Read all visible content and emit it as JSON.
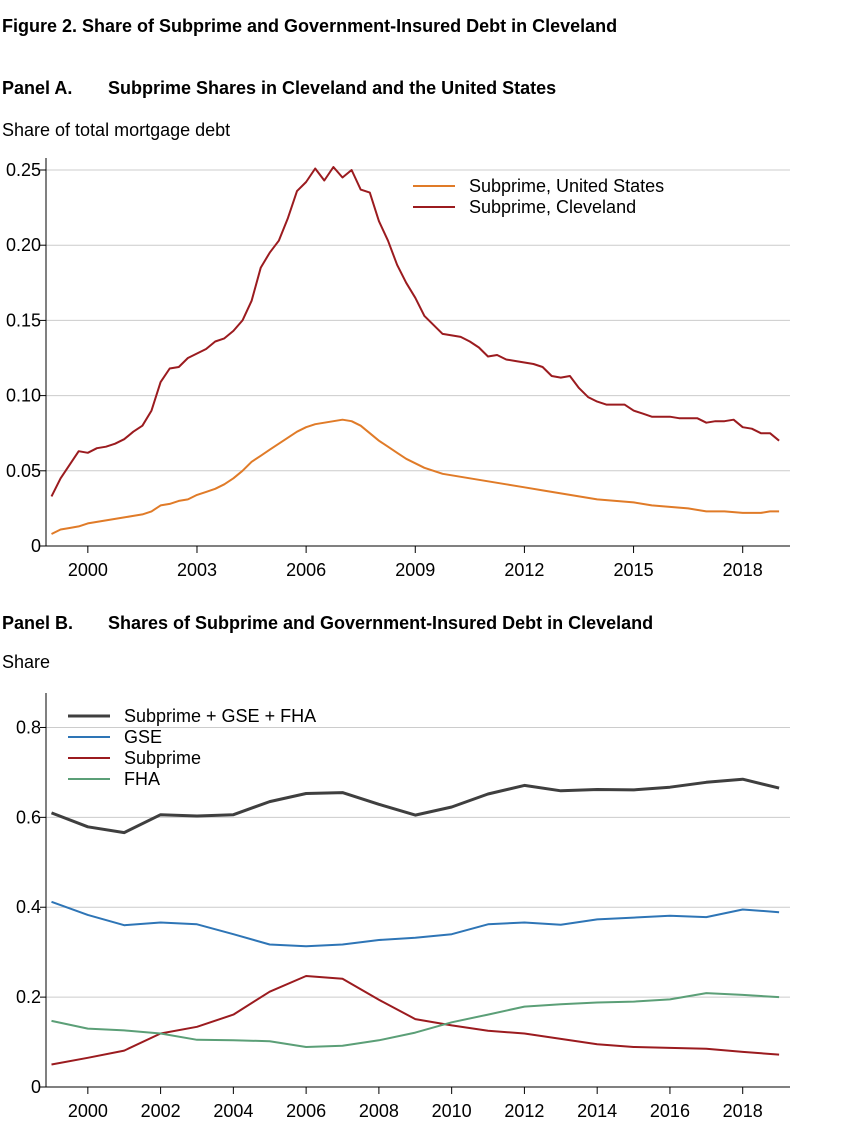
{
  "figure_title": "Figure  2.  Share of Subprime and Government-Insured Debt in Cleveland",
  "chart_data": [
    {
      "type": "line",
      "panel_label": "Panel A.",
      "title": "Subprime Shares in Cleveland and the United States",
      "ylabel": "Share of total mortgage debt",
      "xlim": [
        1998.85,
        2019.3
      ],
      "ylim": [
        0,
        0.25
      ],
      "yticks": [
        0,
        0.05,
        0.1,
        0.15,
        0.2,
        0.25
      ],
      "ytick_labels": [
        "0",
        "0.05",
        "0.10",
        "0.15",
        "0.20",
        "0.25"
      ],
      "xticks": [
        2000,
        2003,
        2006,
        2009,
        2012,
        2015,
        2018
      ],
      "xtick_labels": [
        "2000",
        "2003",
        "2006",
        "2009",
        "2012",
        "2015",
        "2018"
      ],
      "grid": true,
      "legend_position": "top-right",
      "series": [
        {
          "name": "Subprime, United States",
          "color": "#E07B28",
          "x": [
            1999.0,
            1999.25,
            1999.5,
            1999.75,
            2000.0,
            2000.25,
            2000.5,
            2000.75,
            2001.0,
            2001.25,
            2001.5,
            2001.75,
            2002.0,
            2002.25,
            2002.5,
            2002.75,
            2003.0,
            2003.25,
            2003.5,
            2003.75,
            2004.0,
            2004.25,
            2004.5,
            2004.75,
            2005.0,
            2005.25,
            2005.5,
            2005.75,
            2006.0,
            2006.25,
            2006.5,
            2006.75,
            2007.0,
            2007.25,
            2007.5,
            2007.75,
            2008.0,
            2008.25,
            2008.5,
            2008.75,
            2009.0,
            2009.25,
            2009.5,
            2009.75,
            2010.0,
            2010.5,
            2011.0,
            2011.5,
            2012.0,
            2012.5,
            2013.0,
            2013.5,
            2014.0,
            2014.5,
            2015.0,
            2015.5,
            2016.0,
            2016.5,
            2017.0,
            2017.5,
            2018.0,
            2018.25,
            2018.5,
            2018.75,
            2019.0
          ],
          "y": [
            0.008,
            0.011,
            0.012,
            0.013,
            0.015,
            0.016,
            0.017,
            0.018,
            0.019,
            0.02,
            0.021,
            0.023,
            0.027,
            0.028,
            0.03,
            0.031,
            0.034,
            0.036,
            0.038,
            0.041,
            0.045,
            0.05,
            0.056,
            0.06,
            0.064,
            0.068,
            0.072,
            0.076,
            0.079,
            0.081,
            0.082,
            0.083,
            0.084,
            0.083,
            0.08,
            0.075,
            0.07,
            0.066,
            0.062,
            0.058,
            0.055,
            0.052,
            0.05,
            0.048,
            0.047,
            0.045,
            0.043,
            0.041,
            0.039,
            0.037,
            0.035,
            0.033,
            0.031,
            0.03,
            0.029,
            0.027,
            0.026,
            0.025,
            0.023,
            0.023,
            0.022,
            0.022,
            0.022,
            0.023,
            0.023
          ]
        },
        {
          "name": "Subprime, Cleveland",
          "color": "#9B1B1F",
          "x": [
            1999.0,
            1999.25,
            1999.5,
            1999.75,
            2000.0,
            2000.25,
            2000.5,
            2000.75,
            2001.0,
            2001.25,
            2001.5,
            2001.75,
            2002.0,
            2002.25,
            2002.5,
            2002.75,
            2003.0,
            2003.25,
            2003.5,
            2003.75,
            2004.0,
            2004.25,
            2004.5,
            2004.75,
            2005.0,
            2005.25,
            2005.5,
            2005.75,
            2006.0,
            2006.25,
            2006.5,
            2006.75,
            2007.0,
            2007.25,
            2007.5,
            2007.75,
            2008.0,
            2008.25,
            2008.5,
            2008.75,
            2009.0,
            2009.25,
            2009.5,
            2009.75,
            2010.0,
            2010.25,
            2010.5,
            2010.75,
            2011.0,
            2011.25,
            2011.5,
            2011.75,
            2012.0,
            2012.25,
            2012.5,
            2012.75,
            2013.0,
            2013.25,
            2013.5,
            2013.75,
            2014.0,
            2014.25,
            2014.5,
            2014.75,
            2015.0,
            2015.25,
            2015.5,
            2015.75,
            2016.0,
            2016.25,
            2016.5,
            2016.75,
            2017.0,
            2017.25,
            2017.5,
            2017.75,
            2018.0,
            2018.25,
            2018.5,
            2018.75,
            2019.0
          ],
          "y": [
            0.033,
            0.045,
            0.054,
            0.063,
            0.062,
            0.065,
            0.066,
            0.068,
            0.071,
            0.076,
            0.08,
            0.09,
            0.109,
            0.118,
            0.119,
            0.125,
            0.128,
            0.131,
            0.136,
            0.138,
            0.143,
            0.15,
            0.163,
            0.185,
            0.195,
            0.203,
            0.218,
            0.236,
            0.242,
            0.251,
            0.243,
            0.252,
            0.245,
            0.25,
            0.237,
            0.235,
            0.216,
            0.203,
            0.187,
            0.175,
            0.165,
            0.153,
            0.147,
            0.141,
            0.14,
            0.139,
            0.136,
            0.132,
            0.126,
            0.127,
            0.124,
            0.123,
            0.122,
            0.121,
            0.119,
            0.113,
            0.112,
            0.113,
            0.105,
            0.099,
            0.096,
            0.094,
            0.094,
            0.094,
            0.09,
            0.088,
            0.086,
            0.086,
            0.086,
            0.085,
            0.085,
            0.085,
            0.082,
            0.083,
            0.083,
            0.084,
            0.079,
            0.078,
            0.075,
            0.075,
            0.07
          ]
        }
      ]
    },
    {
      "type": "line",
      "panel_label": "Panel B.",
      "title": "Shares of Subprime and Government-Insured Debt in Cleveland",
      "ylabel": "Share",
      "xlim": [
        1998.85,
        2019.3
      ],
      "ylim": [
        0,
        0.85
      ],
      "yticks": [
        0,
        0.2,
        0.4,
        0.6,
        0.8
      ],
      "ytick_labels": [
        "0",
        "0.2",
        "0.4",
        "0.6",
        "0.8"
      ],
      "xticks": [
        2000,
        2002,
        2004,
        2006,
        2008,
        2010,
        2012,
        2014,
        2016,
        2018
      ],
      "xtick_labels": [
        "2000",
        "2002",
        "2004",
        "2006",
        "2008",
        "2010",
        "2012",
        "2014",
        "2016",
        "2018"
      ],
      "grid": true,
      "legend_position": "top-left",
      "x": [
        1999,
        2000,
        2001,
        2002,
        2003,
        2004,
        2005,
        2006,
        2007,
        2008,
        2009,
        2010,
        2011,
        2012,
        2013,
        2014,
        2015,
        2016,
        2017,
        2018,
        2019
      ],
      "series": [
        {
          "name": "Subprime + GSE + FHA",
          "color": "#3F3F3F",
          "values": [
            0.61,
            0.579,
            0.566,
            0.606,
            0.603,
            0.606,
            0.635,
            0.653,
            0.655,
            0.629,
            0.605,
            0.623,
            0.652,
            0.671,
            0.659,
            0.662,
            0.661,
            0.667,
            0.678,
            0.685,
            0.665
          ]
        },
        {
          "name": "GSE",
          "color": "#2E75B6",
          "values": [
            0.412,
            0.383,
            0.36,
            0.366,
            0.362,
            0.34,
            0.317,
            0.313,
            0.317,
            0.327,
            0.332,
            0.34,
            0.362,
            0.366,
            0.361,
            0.373,
            0.377,
            0.381,
            0.378,
            0.395,
            0.389
          ]
        },
        {
          "name": "Subprime",
          "color": "#9B1B1F",
          "values": [
            0.05,
            0.065,
            0.081,
            0.119,
            0.134,
            0.161,
            0.212,
            0.247,
            0.241,
            0.194,
            0.151,
            0.137,
            0.125,
            0.119,
            0.107,
            0.095,
            0.089,
            0.087,
            0.085,
            0.078,
            0.072
          ]
        },
        {
          "name": "FHA",
          "color": "#5B9F77",
          "values": [
            0.147,
            0.13,
            0.126,
            0.119,
            0.105,
            0.104,
            0.102,
            0.089,
            0.092,
            0.104,
            0.121,
            0.144,
            0.161,
            0.179,
            0.184,
            0.188,
            0.19,
            0.195,
            0.209,
            0.205,
            0.2
          ]
        }
      ]
    }
  ]
}
